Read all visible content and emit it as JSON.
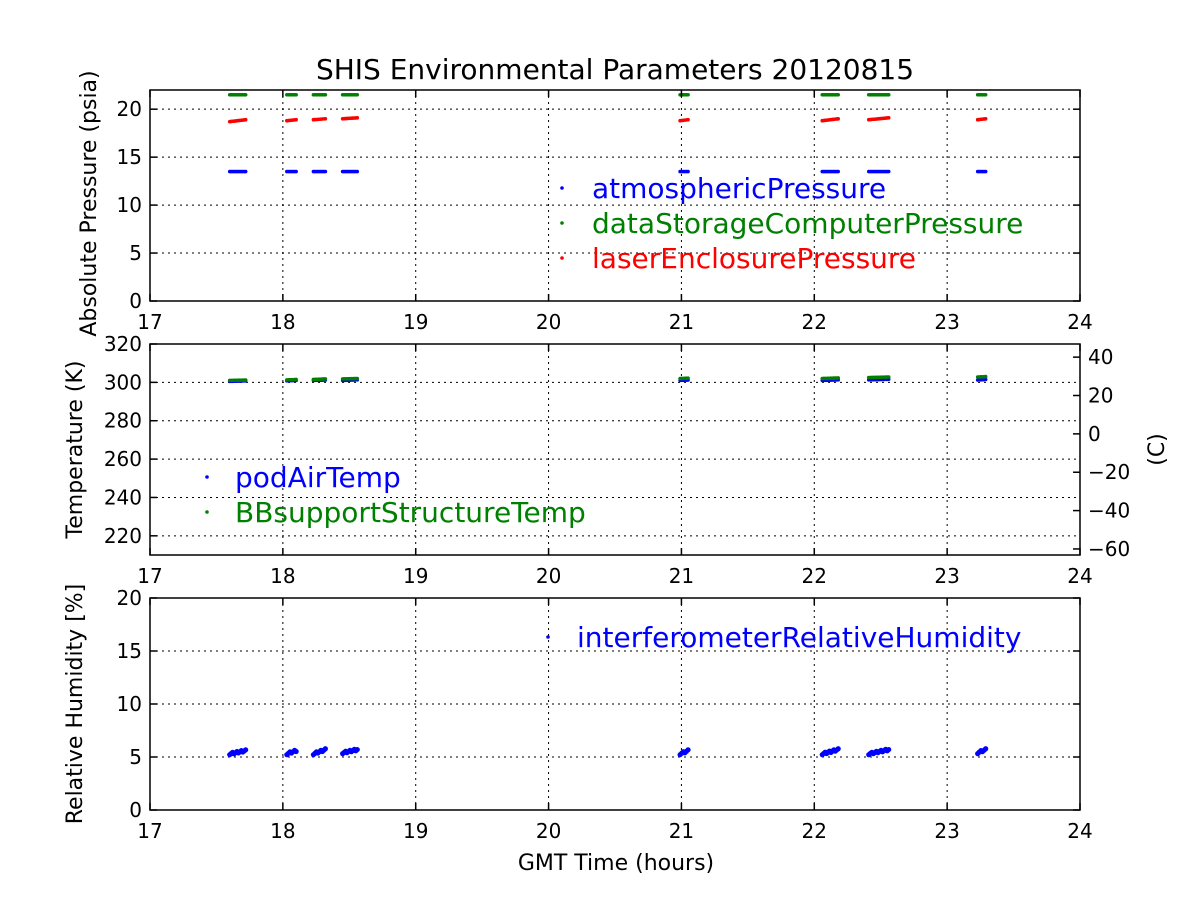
{
  "title": "SHIS Environmental Parameters 20120815",
  "chart_data": [
    {
      "type": "scatter",
      "name": "pressure",
      "ylabel": "Absolute Pressure (psia)",
      "xlim": [
        17,
        24
      ],
      "ylim": [
        0,
        22
      ],
      "xticks": [
        "17",
        "18",
        "19",
        "20",
        "21",
        "22",
        "23",
        "24"
      ],
      "yticks": [
        0,
        5,
        10,
        15,
        20
      ],
      "grid": true,
      "legend_position": "right",
      "series": [
        {
          "name": "atmosphericPressure",
          "color": "#0000ff",
          "segments": [
            [
              17.6,
              17.72,
              13.5,
              13.5
            ],
            [
              18.03,
              18.1,
              13.5,
              13.5
            ],
            [
              18.23,
              18.32,
              13.5,
              13.5
            ],
            [
              18.45,
              18.56,
              13.5,
              13.5
            ],
            [
              20.99,
              21.05,
              13.5,
              13.5
            ],
            [
              22.06,
              22.18,
              13.5,
              13.5
            ],
            [
              22.41,
              22.56,
              13.5,
              13.5
            ],
            [
              23.23,
              23.29,
              13.5,
              13.5
            ]
          ]
        },
        {
          "name": "dataStorageComputerPressure",
          "color": "#008000",
          "segments": [
            [
              17.6,
              17.72,
              21.5,
              21.5
            ],
            [
              18.03,
              18.1,
              21.5,
              21.5
            ],
            [
              18.23,
              18.32,
              21.5,
              21.5
            ],
            [
              18.45,
              18.56,
              21.5,
              21.5
            ],
            [
              20.99,
              21.05,
              21.5,
              21.5
            ],
            [
              22.06,
              22.18,
              21.5,
              21.5
            ],
            [
              22.41,
              22.56,
              21.5,
              21.5
            ],
            [
              23.23,
              23.29,
              21.5,
              21.5
            ]
          ]
        },
        {
          "name": "laserEnclosurePressure",
          "color": "#ff0000",
          "segments": [
            [
              17.6,
              17.72,
              18.7,
              18.9
            ],
            [
              18.03,
              18.1,
              18.8,
              18.9
            ],
            [
              18.23,
              18.32,
              18.9,
              19.0
            ],
            [
              18.45,
              18.56,
              19.0,
              19.1
            ],
            [
              20.99,
              21.05,
              18.8,
              18.9
            ],
            [
              22.06,
              22.18,
              18.8,
              19.0
            ],
            [
              22.41,
              22.56,
              18.9,
              19.1
            ],
            [
              23.23,
              23.29,
              18.9,
              19.0
            ]
          ]
        }
      ]
    },
    {
      "type": "scatter",
      "name": "temperature",
      "ylabel": "Temperature (K)",
      "y2label": "(C)",
      "xlim": [
        17,
        24
      ],
      "ylim": [
        210,
        320
      ],
      "xticks": [
        "17",
        "18",
        "19",
        "20",
        "21",
        "22",
        "23",
        "24"
      ],
      "yticks": [
        220,
        240,
        260,
        280,
        300,
        320
      ],
      "y2ticks": [
        -60,
        -40,
        -20,
        0,
        20,
        40
      ],
      "y2offset": 273.15,
      "grid": true,
      "legend_position": "lower-left",
      "series": [
        {
          "name": "podAirTemp",
          "color": "#0000ff",
          "segments": [
            [
              17.6,
              17.72,
              300.5,
              300.8
            ],
            [
              18.03,
              18.1,
              300.8,
              301.0
            ],
            [
              18.23,
              18.32,
              301.0,
              301.2
            ],
            [
              18.45,
              18.56,
              301.0,
              301.3
            ],
            [
              20.99,
              21.05,
              301.0,
              301.2
            ],
            [
              22.06,
              22.18,
              301.0,
              301.3
            ],
            [
              22.41,
              22.56,
              301.3,
              301.6
            ],
            [
              23.23,
              23.29,
              301.2,
              301.5
            ]
          ]
        },
        {
          "name": "BBsupportStructureTemp",
          "color": "#008000",
          "segments": [
            [
              17.6,
              17.72,
              301.0,
              301.2
            ],
            [
              18.03,
              18.1,
              301.3,
              301.5
            ],
            [
              18.23,
              18.32,
              301.5,
              301.8
            ],
            [
              18.45,
              18.56,
              301.8,
              302.0
            ],
            [
              20.99,
              21.05,
              302.0,
              302.2
            ],
            [
              22.06,
              22.18,
              302.0,
              302.3
            ],
            [
              22.41,
              22.56,
              302.5,
              302.8
            ],
            [
              23.23,
              23.29,
              302.8,
              303.0
            ]
          ]
        }
      ]
    },
    {
      "type": "scatter",
      "name": "humidity",
      "ylabel": "Relative Humidity [%]",
      "xlabel": "GMT Time (hours)",
      "xlim": [
        17,
        24
      ],
      "ylim": [
        0,
        20
      ],
      "xticks": [
        "17",
        "18",
        "19",
        "20",
        "21",
        "22",
        "23",
        "24"
      ],
      "yticks": [
        0,
        5,
        10,
        15,
        20
      ],
      "grid": true,
      "legend_position": "top-right",
      "series": [
        {
          "name": "interferometerRelativeHumidity",
          "color": "#0000ff",
          "segments": [
            [
              17.6,
              17.72,
              5.3,
              5.6
            ],
            [
              18.03,
              18.1,
              5.3,
              5.6
            ],
            [
              18.23,
              18.32,
              5.3,
              5.7
            ],
            [
              18.45,
              18.56,
              5.4,
              5.7
            ],
            [
              20.99,
              21.05,
              5.3,
              5.6
            ],
            [
              22.06,
              22.18,
              5.3,
              5.7
            ],
            [
              22.41,
              22.56,
              5.3,
              5.7
            ],
            [
              23.23,
              23.29,
              5.4,
              5.7
            ]
          ]
        }
      ]
    }
  ]
}
